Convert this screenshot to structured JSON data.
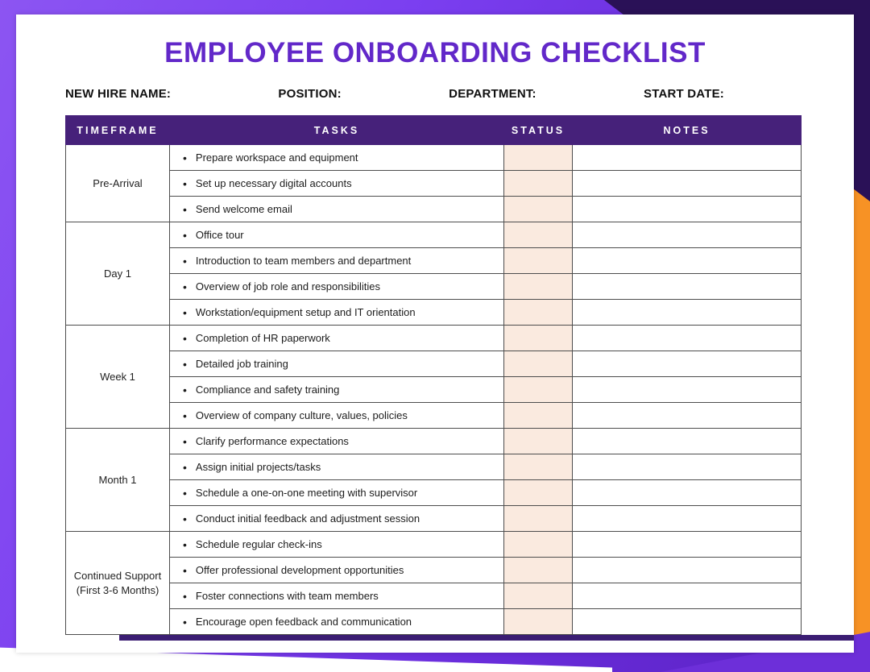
{
  "title": "EMPLOYEE ONBOARDING CHECKLIST",
  "fields": [
    {
      "label": "NEW HIRE NAME:"
    },
    {
      "label": "POSITION:"
    },
    {
      "label": "DEPARTMENT:"
    },
    {
      "label": "START DATE:"
    }
  ],
  "table": {
    "headers": [
      "TIMEFRAME",
      "TASKS",
      "STATUS",
      "NOTES"
    ],
    "groups": [
      {
        "timeframe": "Pre-Arrival",
        "tasks": [
          "Prepare workspace and equipment",
          "Set up necessary digital accounts",
          "Send welcome email"
        ]
      },
      {
        "timeframe": "Day 1",
        "tasks": [
          "Office tour",
          "Introduction to team members and department",
          "Overview of job role and responsibilities",
          "Workstation/equipment setup and IT orientation"
        ]
      },
      {
        "timeframe": "Week 1",
        "tasks": [
          "Completion of HR paperwork",
          "Detailed job training",
          "Compliance and safety training",
          "Overview of company culture, values, policies"
        ]
      },
      {
        "timeframe": "Month 1",
        "tasks": [
          "Clarify performance expectations",
          "Assign initial projects/tasks",
          "Schedule a one-on-one meeting with supervisor",
          "Conduct initial feedback and adjustment session"
        ]
      },
      {
        "timeframe": "Continued Support (First 3-6 Months)",
        "tasks": [
          "Schedule regular check-ins",
          "Offer professional development opportunities",
          "Foster connections with team members",
          "Encourage open feedback and communication"
        ]
      }
    ]
  },
  "colors": {
    "title": "#6228c9",
    "table_header_bg": "#46217a",
    "status_cell_bg": "#faeadf",
    "border": "#4d4d4d",
    "table_bottom_bar": "#3b1d73",
    "accent_purple": "#7b3ff0",
    "accent_purple_light": "#8c55f2",
    "accent_orange": "#f79225",
    "accent_dark_purple": "#2a1157"
  }
}
